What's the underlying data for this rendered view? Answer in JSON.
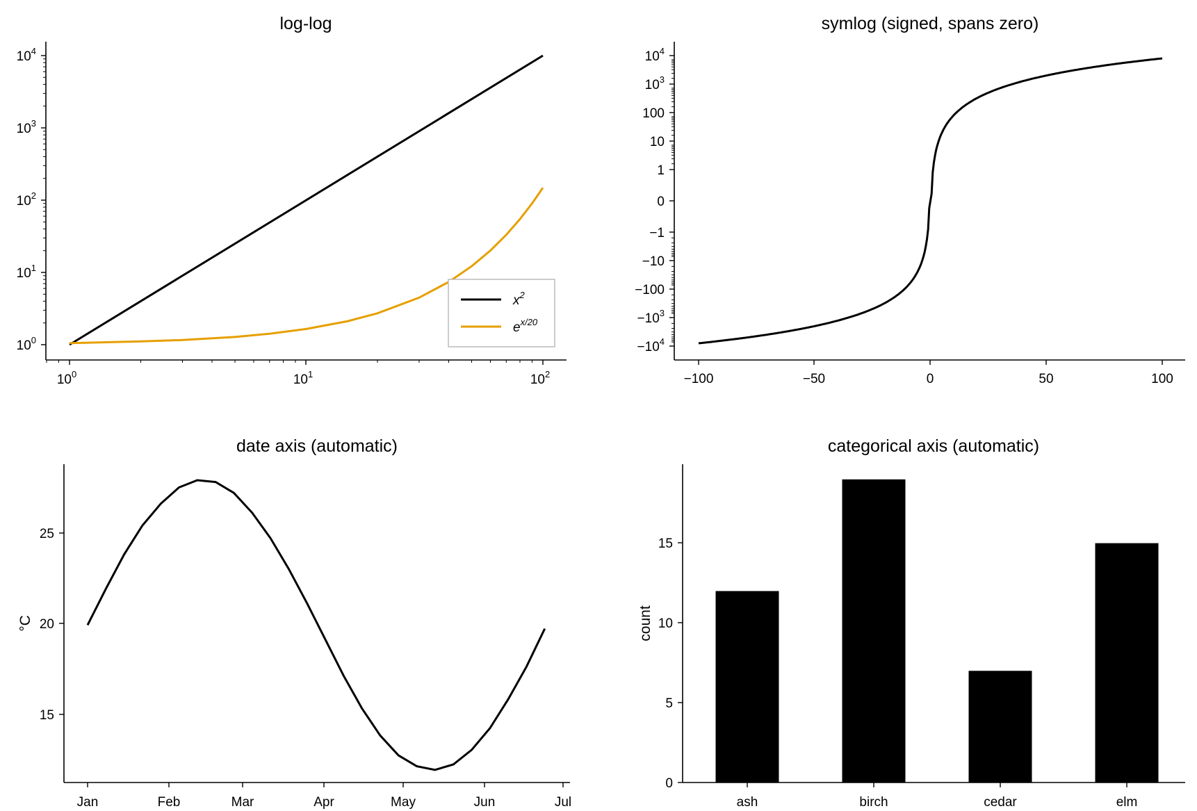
{
  "chart_data": [
    {
      "id": "loglog",
      "type": "line",
      "title": "log-log",
      "xscale": "log",
      "yscale": "log",
      "xlim": [
        1,
        100
      ],
      "ylim": [
        1,
        10000
      ],
      "xticks": [
        {
          "base": "10",
          "exp": "0"
        },
        {
          "base": "10",
          "exp": "1"
        },
        {
          "base": "10",
          "exp": "2"
        }
      ],
      "yticks": [
        {
          "base": "10",
          "exp": "0"
        },
        {
          "base": "10",
          "exp": "1"
        },
        {
          "base": "10",
          "exp": "2"
        },
        {
          "base": "10",
          "exp": "3"
        },
        {
          "base": "10",
          "exp": "4"
        }
      ],
      "legend": "right",
      "series": [
        {
          "name": {
            "base": "x",
            "sup": "2"
          },
          "color": "#000000",
          "x": [
            1,
            100
          ],
          "y": [
            1,
            10000
          ]
        },
        {
          "name": {
            "base": "e",
            "sup": "x/20"
          },
          "color": "#E69F00",
          "x": [
            1,
            2,
            3,
            5,
            7,
            10,
            15,
            20,
            30,
            40,
            50,
            60,
            70,
            80,
            90,
            100
          ],
          "y": [
            1.05,
            1.11,
            1.16,
            1.28,
            1.42,
            1.65,
            2.12,
            2.72,
            4.48,
            7.39,
            12.18,
            20.09,
            33.12,
            54.6,
            90.02,
            148.41
          ]
        }
      ]
    },
    {
      "id": "symlog",
      "type": "line",
      "title": "symlog (signed, spans zero)",
      "xscale": "linear",
      "yscale": "symlog",
      "xlim": [
        -100,
        100
      ],
      "ylim": [
        -10000,
        10000
      ],
      "xticks": [
        "−100",
        "−50",
        "0",
        "50",
        "100"
      ],
      "yticks": [
        {
          "base": "10",
          "exp": "4"
        },
        {
          "base": "10",
          "exp": "3"
        },
        {
          "base": "100",
          "exp": ""
        },
        {
          "base": "10",
          "exp": ""
        },
        {
          "base": "1",
          "exp": ""
        },
        {
          "base": "0",
          "exp": ""
        },
        {
          "base": "−1",
          "exp": ""
        },
        {
          "base": "−10",
          "exp": ""
        },
        {
          "base": "−100",
          "exp": ""
        },
        {
          "base": "−10",
          "exp": "3"
        },
        {
          "base": "−10",
          "exp": "4"
        }
      ],
      "series": [
        {
          "color": "#000000",
          "expr": "sign(x) * x^2"
        }
      ]
    },
    {
      "id": "date",
      "type": "line",
      "title": "date axis (automatic)",
      "ylabel": "°C",
      "xlim": [
        "2024-01-01",
        "2024-07-01"
      ],
      "ylim": [
        11.3,
        28.5
      ],
      "xticks": [
        "Jan",
        "Feb",
        "Mar",
        "Apr",
        "May",
        "Jun",
        "Jul"
      ],
      "yticks": [
        "15",
        "20",
        "25"
      ],
      "series": [
        {
          "color": "#000000",
          "x": [
            "2024-01-01",
            "2024-01-08",
            "2024-01-15",
            "2024-01-22",
            "2024-01-29",
            "2024-02-05",
            "2024-02-12",
            "2024-02-19",
            "2024-02-26",
            "2024-03-04",
            "2024-03-11",
            "2024-03-18",
            "2024-03-25",
            "2024-04-01",
            "2024-04-08",
            "2024-04-15",
            "2024-04-22",
            "2024-04-29",
            "2024-05-06",
            "2024-05-13",
            "2024-05-20",
            "2024-05-27",
            "2024-06-03",
            "2024-06-10",
            "2024-06-17",
            "2024-06-24"
          ],
          "y": [
            20.0,
            22.0,
            23.9,
            25.5,
            26.7,
            27.6,
            28.0,
            27.9,
            27.3,
            26.2,
            24.8,
            23.1,
            21.2,
            19.2,
            17.2,
            15.4,
            13.9,
            12.8,
            12.2,
            12.0,
            12.3,
            13.1,
            14.3,
            15.9,
            17.7,
            19.8
          ]
        }
      ]
    },
    {
      "id": "categorical",
      "type": "bar",
      "title": "categorical axis (automatic)",
      "ylabel": "count",
      "ylim": [
        0,
        19.95
      ],
      "yticks": [
        "0",
        "5",
        "10",
        "15"
      ],
      "categories": [
        "ash",
        "birch",
        "cedar",
        "elm"
      ],
      "values": [
        12,
        19,
        7,
        15
      ],
      "color": "#000000"
    }
  ]
}
